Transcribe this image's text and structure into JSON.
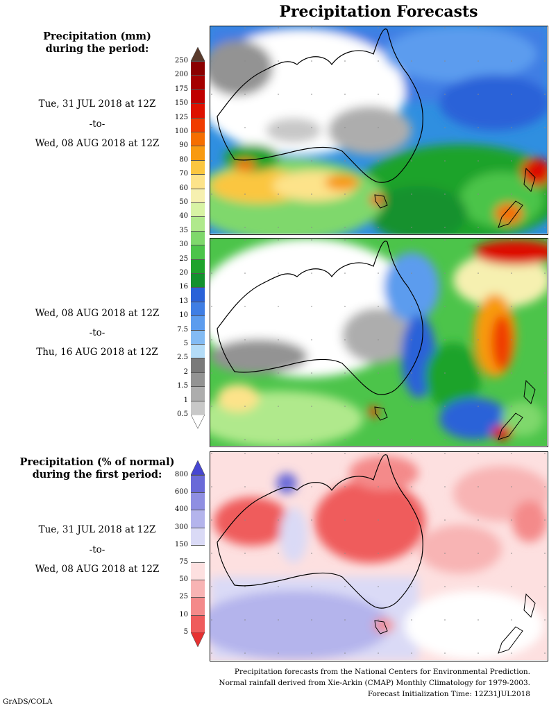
{
  "title": "Precipitation Forecasts",
  "panel1": {
    "heading_line1": "Precipitation (mm)",
    "heading_line2": "during the period:",
    "start": "Tue, 31 JUL 2018 at 12Z",
    "to": "-to-",
    "end": "Wed, 08 AUG 2018 at 12Z"
  },
  "panel2": {
    "start": "Wed, 08 AUG 2018 at 12Z",
    "to": "-to-",
    "end": "Thu, 16 AUG 2018 at 12Z"
  },
  "panel3": {
    "heading_line1": "Precipitation (% of normal)",
    "heading_line2": "during the first period:",
    "start": "Tue, 31 JUL 2018 at 12Z",
    "to": "-to-",
    "end": "Wed, 08 AUG 2018 at 12Z"
  },
  "precip_scale": {
    "labels": [
      "250",
      "200",
      "175",
      "150",
      "125",
      "100",
      "90",
      "80",
      "70",
      "60",
      "50",
      "40",
      "35",
      "30",
      "25",
      "20",
      "16",
      "13",
      "10",
      "7.5",
      "5",
      "2.5",
      "2",
      "1.5",
      "1",
      "0.5"
    ],
    "colors": [
      "#5a3a2c",
      "#8b0000",
      "#a50000",
      "#c00000",
      "#dd1100",
      "#f03c00",
      "#f56e00",
      "#f89a10",
      "#fbc640",
      "#fde38a",
      "#f6f0b0",
      "#d8f3a4",
      "#b0e98c",
      "#7fd86c",
      "#4cc44a",
      "#1ea32c",
      "#13912e",
      "#2a62d8",
      "#3f7ee4",
      "#5c9cee",
      "#83bbf4",
      "#b4dcf8",
      "#7a7a7a",
      "#939393",
      "#adadad",
      "#c8c8c8",
      "#ffffff"
    ]
  },
  "percent_scale": {
    "labels": [
      "800",
      "600",
      "400",
      "300",
      "150",
      "75",
      "50",
      "25",
      "10",
      "5"
    ],
    "colors": [
      "#4646d2",
      "#6a6ad8",
      "#8f8fe2",
      "#b4b4ec",
      "#dadaf6",
      "#ffffff",
      "#fde0e0",
      "#f8b4b4",
      "#f48a8a",
      "#ef5c5c",
      "#e63030"
    ]
  },
  "footer": {
    "line1": "Precipitation forecasts from the National Centers for Environmental Prediction.",
    "line2": "Normal rainfall derived from Xie-Arkin (CMAP) Monthly Climatology for 1979-2003.",
    "line3": "Forecast Initialization Time: 12Z31JUL2018"
  },
  "credit": "GrADS/COLA"
}
